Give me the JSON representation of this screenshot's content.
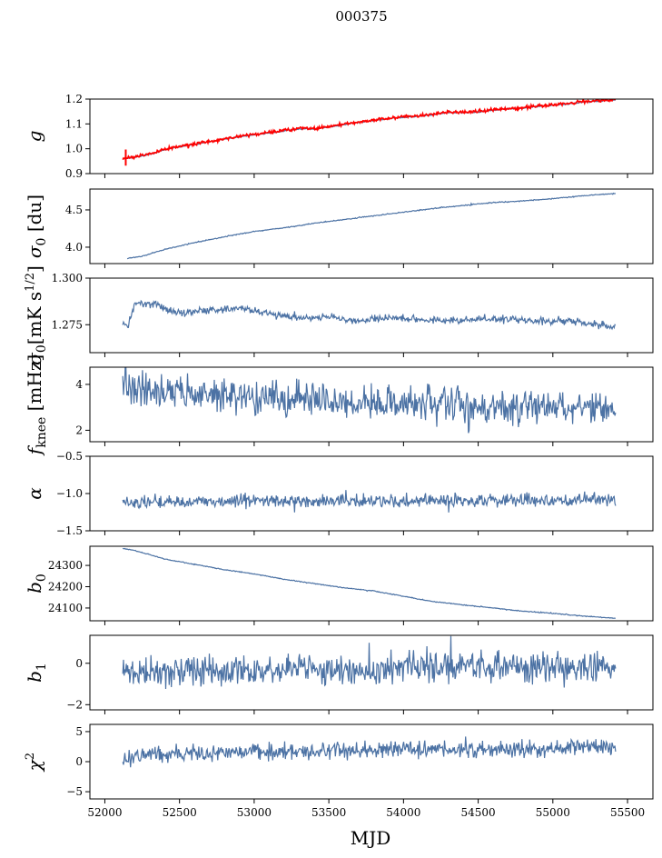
{
  "figure": {
    "title": "000375",
    "xlabel": "MJD"
  },
  "colors": {
    "series": "#4c72a4",
    "overlay": "#ff0000",
    "axis": "#000000"
  },
  "chart_data": [
    {
      "type": "line",
      "ylabel": "g",
      "ylabel_sub": "",
      "xlim": [
        51900,
        55670
      ],
      "ylim": [
        0.9,
        1.2
      ],
      "yticks": [
        0.9,
        1.0,
        1.1,
        1.2
      ],
      "ytick_labels": [
        "0.9",
        "1.0",
        "1.1",
        "1.2"
      ],
      "series": [
        {
          "kind": "trend",
          "x": [
            52120,
            52200,
            52300,
            52400,
            52500,
            52600,
            52700,
            52800,
            52900,
            53000,
            53100,
            53200,
            53300,
            53400,
            53500,
            53600,
            53700,
            53800,
            53900,
            54000,
            54100,
            54200,
            54300,
            54400,
            54500,
            54600,
            54700,
            54800,
            54900,
            55000,
            55100,
            55200,
            55300,
            55420
          ],
          "y": [
            0.96,
            0.965,
            0.978,
            0.995,
            1.008,
            1.018,
            1.027,
            1.038,
            1.048,
            1.056,
            1.063,
            1.072,
            1.08,
            1.08,
            1.087,
            1.097,
            1.106,
            1.114,
            1.121,
            1.126,
            1.13,
            1.138,
            1.145,
            1.145,
            1.148,
            1.155,
            1.16,
            1.164,
            1.17,
            1.175,
            1.18,
            1.187,
            1.192,
            1.196
          ],
          "noise": 0.0015,
          "seed": 11
        },
        {
          "kind": "overlay",
          "x": [
            52120,
            52200,
            52300,
            52400,
            52500,
            52600,
            52700,
            52800,
            52900,
            53000,
            53100,
            53200,
            53300,
            53400,
            53500,
            53600,
            53700,
            53800,
            53900,
            54000,
            54100,
            54200,
            54300,
            54400,
            54500,
            54600,
            54700,
            54800,
            54900,
            55000,
            55100,
            55200,
            55300,
            55420
          ],
          "y": [
            0.962,
            0.967,
            0.98,
            0.997,
            1.01,
            1.02,
            1.029,
            1.04,
            1.05,
            1.058,
            1.065,
            1.074,
            1.082,
            1.082,
            1.089,
            1.099,
            1.108,
            1.116,
            1.123,
            1.128,
            1.132,
            1.14,
            1.147,
            1.147,
            1.15,
            1.157,
            1.162,
            1.166,
            1.172,
            1.177,
            1.182,
            1.189,
            1.194,
            1.198
          ],
          "noise": 0.004,
          "seed": 12
        }
      ]
    },
    {
      "type": "line",
      "ylabel": "σ",
      "ylabel_sub": "0",
      "ylabel_rest": " [du]",
      "xlim": [
        51900,
        55670
      ],
      "ylim": [
        3.78,
        4.78
      ],
      "yticks": [
        4.0,
        4.5
      ],
      "ytick_labels": [
        "4.0",
        "4.5"
      ],
      "series": [
        {
          "kind": "trend",
          "x": [
            52150,
            52250,
            52400,
            52600,
            52800,
            53000,
            53200,
            53400,
            53600,
            53800,
            54000,
            54200,
            54400,
            54600,
            54800,
            55000,
            55200,
            55420
          ],
          "y": [
            3.85,
            3.88,
            3.97,
            4.06,
            4.14,
            4.21,
            4.26,
            4.32,
            4.37,
            4.42,
            4.47,
            4.52,
            4.56,
            4.6,
            4.62,
            4.65,
            4.69,
            4.72
          ],
          "noise": 0.004,
          "seed": 21
        }
      ]
    },
    {
      "type": "line",
      "ylabel": "σ",
      "ylabel_sub": "0",
      "ylabel_rest": "[mK s",
      "ylabel_sup": "1/2",
      "ylabel_end": "]",
      "xlim": [
        51900,
        55670
      ],
      "ylim": [
        1.26,
        1.3
      ],
      "yticks": [
        1.275,
        1.3
      ],
      "ytick_labels": [
        "1.275",
        "1.300"
      ],
      "series": [
        {
          "kind": "trend",
          "x": [
            52120,
            52150,
            52200,
            52300,
            52400,
            52500,
            52700,
            52900,
            53100,
            53300,
            53500,
            53700,
            53900,
            54100,
            54300,
            54500,
            54700,
            54900,
            55100,
            55300,
            55420
          ],
          "y": [
            1.277,
            1.273,
            1.286,
            1.287,
            1.284,
            1.281,
            1.283,
            1.284,
            1.281,
            1.279,
            1.279,
            1.277,
            1.279,
            1.278,
            1.277,
            1.278,
            1.278,
            1.277,
            1.277,
            1.275,
            1.274
          ],
          "noise": 0.0012,
          "seed": 31
        }
      ]
    },
    {
      "type": "line",
      "ylabel": "f",
      "ylabel_sub": "knee",
      "ylabel_rest": " [mHz]",
      "xlim": [
        51900,
        55670
      ],
      "ylim": [
        1.5,
        4.75
      ],
      "yticks": [
        2,
        4
      ],
      "ytick_labels": [
        "2",
        "4"
      ],
      "series": [
        {
          "kind": "trend",
          "x": [
            52120,
            52300,
            52600,
            53000,
            53400,
            53800,
            54200,
            54600,
            55000,
            55420
          ],
          "y": [
            3.9,
            3.8,
            3.6,
            3.4,
            3.3,
            3.2,
            3.1,
            3.05,
            3.0,
            2.9
          ],
          "noise": 0.45,
          "seed": 41
        }
      ]
    },
    {
      "type": "line",
      "ylabel": "α",
      "ylabel_sub": "",
      "xlim": [
        51900,
        55670
      ],
      "ylim": [
        -1.5,
        -0.5
      ],
      "yticks": [
        -1.5,
        -1.0,
        -0.5
      ],
      "ytick_labels": [
        "−1.5",
        "−1.0",
        "−0.5"
      ],
      "series": [
        {
          "kind": "trend",
          "x": [
            52120,
            52600,
            53000,
            53500,
            54000,
            54500,
            55000,
            55420
          ],
          "y": [
            -1.12,
            -1.11,
            -1.1,
            -1.1,
            -1.1,
            -1.1,
            -1.09,
            -1.08
          ],
          "noise": 0.055,
          "seed": 51
        }
      ]
    },
    {
      "type": "line",
      "ylabel": "b",
      "ylabel_sub": "0",
      "xlim": [
        51900,
        55670
      ],
      "ylim": [
        24040,
        24390
      ],
      "yticks": [
        24100,
        24200,
        24300
      ],
      "ytick_labels": [
        "24100",
        "24200",
        "24300"
      ],
      "series": [
        {
          "kind": "trend",
          "x": [
            52120,
            52200,
            52400,
            52600,
            52800,
            53000,
            53200,
            53400,
            53600,
            53800,
            54000,
            54200,
            54400,
            54600,
            54800,
            55000,
            55200,
            55420
          ],
          "y": [
            24380,
            24370,
            24330,
            24305,
            24280,
            24260,
            24235,
            24215,
            24195,
            24180,
            24155,
            24130,
            24115,
            24100,
            24085,
            24075,
            24062,
            24052
          ],
          "noise": 1.2,
          "seed": 61
        }
      ]
    },
    {
      "type": "line",
      "ylabel": "b",
      "ylabel_sub": "1",
      "xlim": [
        51900,
        55670
      ],
      "ylim": [
        -2.25,
        1.35
      ],
      "yticks": [
        -2,
        0
      ],
      "ytick_labels": [
        "−2",
        "0"
      ],
      "series": [
        {
          "kind": "trend",
          "x": [
            52120,
            52600,
            53000,
            53500,
            54000,
            54500,
            55000,
            55420
          ],
          "y": [
            -0.45,
            -0.4,
            -0.35,
            -0.3,
            -0.25,
            -0.2,
            -0.2,
            -0.2
          ],
          "noise": 0.45,
          "seed": 71
        }
      ]
    },
    {
      "type": "line",
      "ylabel": "χ",
      "ylabel_sub": "",
      "ylabel_sup": "2",
      "xlim": [
        51900,
        55670
      ],
      "ylim": [
        -6.2,
        6.2
      ],
      "yticks": [
        -5,
        0,
        5
      ],
      "ytick_labels": [
        "−5",
        "0",
        "5"
      ],
      "xticks": [
        52000,
        52500,
        53000,
        53500,
        54000,
        54500,
        55000,
        55500
      ],
      "xtick_labels": [
        "52000",
        "52500",
        "53000",
        "53500",
        "54000",
        "54500",
        "55000",
        "55500"
      ],
      "series": [
        {
          "kind": "trend",
          "x": [
            52120,
            52300,
            52600,
            53000,
            53400,
            53800,
            54200,
            54600,
            55000,
            55420
          ],
          "y": [
            0.4,
            1.2,
            1.5,
            1.6,
            1.8,
            2.0,
            2.1,
            1.9,
            2.2,
            2.4
          ],
          "noise": 0.85,
          "seed": 81
        }
      ]
    }
  ]
}
